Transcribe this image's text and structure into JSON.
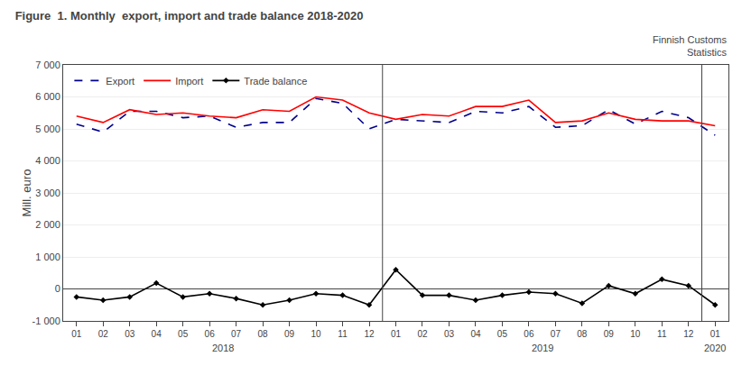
{
  "chart_data": {
    "type": "line",
    "title": "Figure  1. Monthly  export, import and trade balance 2018-2020",
    "ylabel": "Mill. euro",
    "categories": [
      "01",
      "02",
      "03",
      "04",
      "05",
      "06",
      "07",
      "08",
      "09",
      "10",
      "11",
      "12",
      "01",
      "02",
      "03",
      "04",
      "05",
      "06",
      "07",
      "08",
      "09",
      "10",
      "11",
      "12",
      "01"
    ],
    "series": [
      {
        "name": "Export",
        "color": "#00008B",
        "line_style": "dashed",
        "values": [
          5150,
          4900,
          5550,
          5550,
          5350,
          5400,
          5050,
          5200,
          5200,
          5950,
          5800,
          5000,
          5300,
          5250,
          5200,
          5550,
          5500,
          5700,
          5050,
          5100,
          5600,
          5150,
          5550,
          5350,
          4800
        ]
      },
      {
        "name": "Import",
        "color": "#FF0000",
        "line_style": "solid",
        "values": [
          5400,
          5200,
          5600,
          5450,
          5500,
          5400,
          5350,
          5600,
          5550,
          6000,
          5900,
          5500,
          5300,
          5450,
          5400,
          5700,
          5700,
          5900,
          5200,
          5250,
          5500,
          5300,
          5250,
          5250,
          5100
        ]
      },
      {
        "name": "Trade balance",
        "color": "#000000",
        "line_style": "solid",
        "marker": "diamond",
        "values": [
          -250,
          -350,
          -250,
          180,
          -250,
          -150,
          -300,
          -500,
          -350,
          -150,
          -200,
          -500,
          600,
          -200,
          -200,
          -350,
          -200,
          -100,
          -150,
          -450,
          100,
          -150,
          300,
          100,
          -500
        ]
      }
    ],
    "ylim": [
      -1000,
      7000
    ],
    "yticks": [
      {
        "value": -1000,
        "label": "-1 000"
      },
      0,
      {
        "value": 1000,
        "label": "1 000"
      },
      {
        "value": 2000,
        "label": "2 000"
      },
      {
        "value": 3000,
        "label": "3 000"
      },
      {
        "value": 4000,
        "label": "4 000"
      },
      {
        "value": 5000,
        "label": "5 000"
      },
      {
        "value": 6000,
        "label": "6 000"
      },
      {
        "value": 7000,
        "label": "7 000"
      }
    ],
    "grid": true,
    "legend": "upper left",
    "annotations": [
      {
        "text": "Finnish Customs\nStatistics"
      },
      {
        "text": "2018"
      },
      {
        "text": "2019"
      },
      {
        "text": "2020"
      }
    ]
  }
}
